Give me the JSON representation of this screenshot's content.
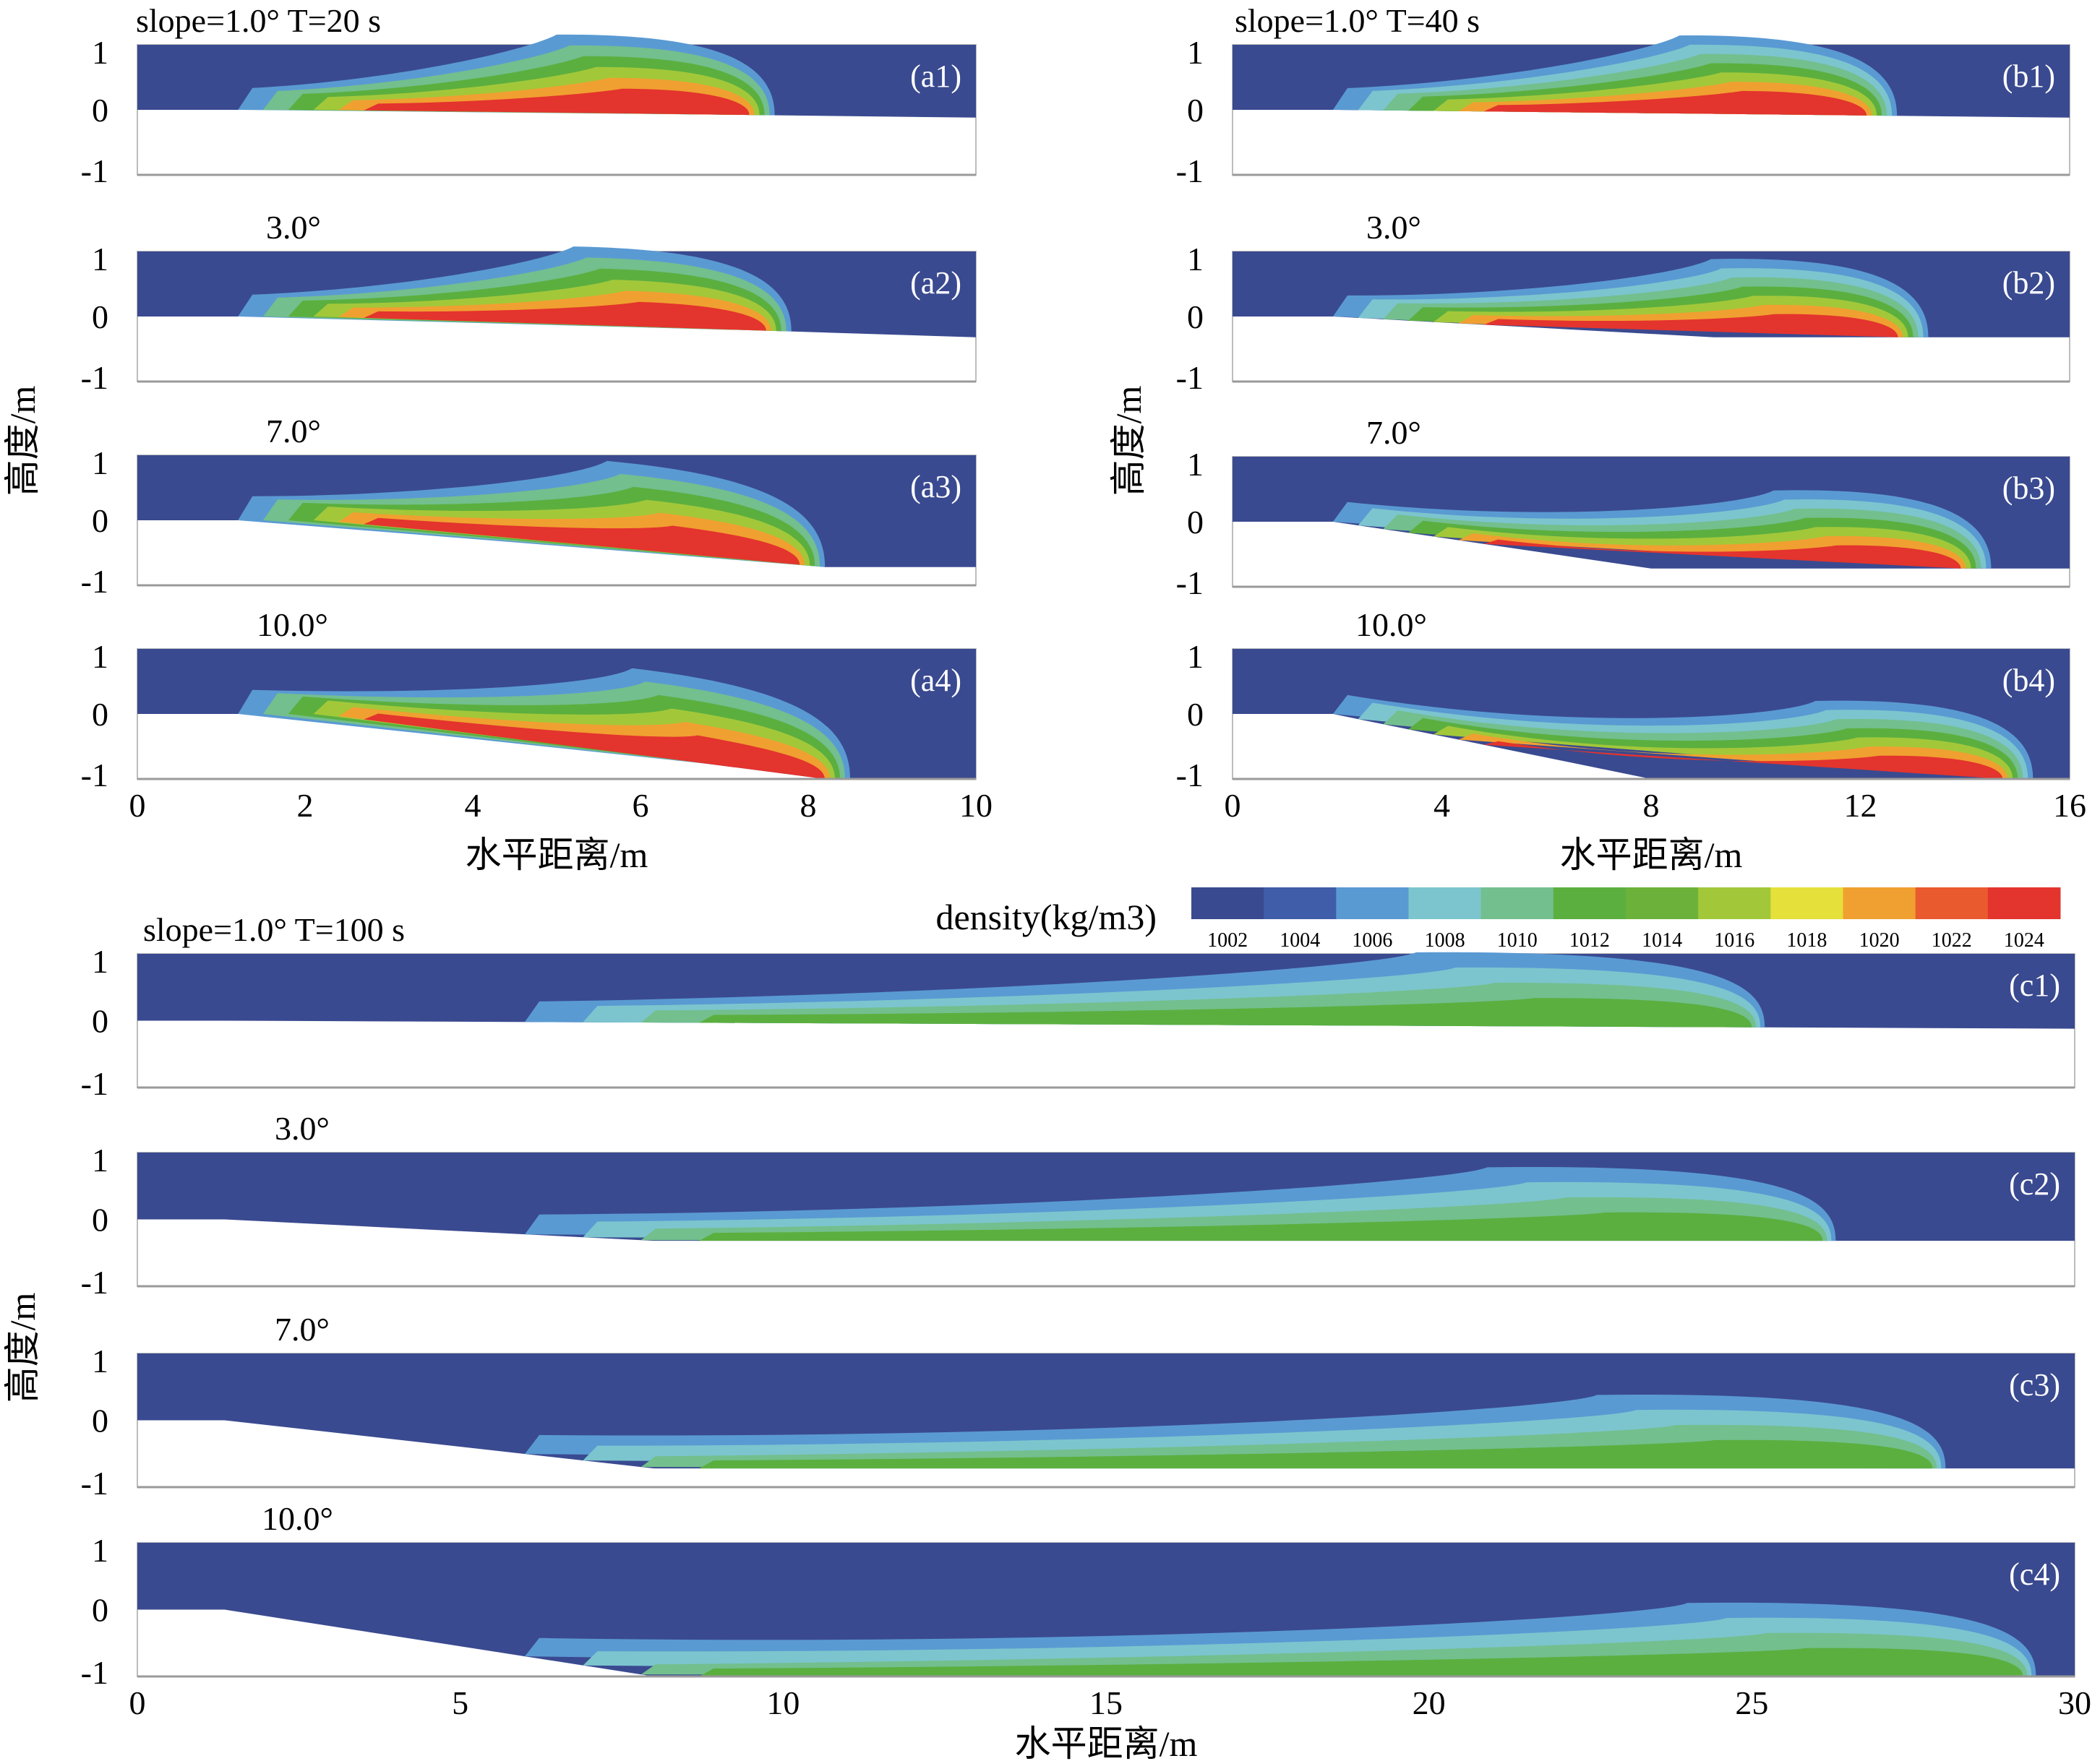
{
  "chart_data": {
    "type": "heatmap",
    "figure_description": "Simulated density fields of a gravity current flowing down slopes of different angle at three times",
    "colorbar": {
      "title": "density(kg/m3)",
      "ticks": [
        "1002",
        "1004",
        "1006",
        "1008",
        "1010",
        "1012",
        "1014",
        "1016",
        "1018",
        "1020",
        "1022",
        "1024"
      ],
      "colors": [
        "#3A4A90",
        "#3F5DA8",
        "#5A9AD3",
        "#7CC5CE",
        "#73BF8E",
        "#5BAF3F",
        "#6CB23A",
        "#A2C83A",
        "#E6E03A",
        "#F0A030",
        "#EA5A2F",
        "#E3342E"
      ]
    },
    "groups": [
      {
        "id": "a",
        "header": "slope=1.0°  T=20 s",
        "time_s": 20,
        "xlabel": "水平距离/m",
        "ylabel": "高度/m",
        "xlim": [
          0,
          10
        ],
        "xticks": [
          "0",
          "2",
          "4",
          "6",
          "8",
          "10"
        ],
        "yticks": [
          "1",
          "0",
          "-1"
        ],
        "panels": [
          {
            "label": "(a1)",
            "slope_label": "",
            "slope_deg": 1.0,
            "front_x_m": 7.6
          },
          {
            "label": "(a2)",
            "slope_label": "3.0°",
            "slope_deg": 3.0,
            "front_x_m": 7.8
          },
          {
            "label": "(a3)",
            "slope_label": "7.0°",
            "slope_deg": 7.0,
            "front_x_m": 8.2
          },
          {
            "label": "(a4)",
            "slope_label": "10.0°",
            "slope_deg": 10.0,
            "front_x_m": 8.5
          }
        ]
      },
      {
        "id": "b",
        "header": "slope=1.0°  T=40 s",
        "time_s": 40,
        "xlabel": "水平距离/m",
        "ylabel": "高度/m",
        "xlim": [
          0,
          16
        ],
        "xticks": [
          "0",
          "4",
          "8",
          "12",
          "16"
        ],
        "yticks": [
          "1",
          "0",
          "-1"
        ],
        "panels": [
          {
            "label": "(b1)",
            "slope_label": "",
            "slope_deg": 1.0,
            "front_x_m": 12.7
          },
          {
            "label": "(b2)",
            "slope_label": "3.0°",
            "slope_deg": 3.0,
            "front_x_m": 13.3
          },
          {
            "label": "(b3)",
            "slope_label": "7.0°",
            "slope_deg": 7.0,
            "front_x_m": 14.5
          },
          {
            "label": "(b4)",
            "slope_label": "10.0°",
            "slope_deg": 10.0,
            "front_x_m": 15.3
          }
        ]
      },
      {
        "id": "c",
        "header": "slope=1.0°  T=100 s",
        "time_s": 100,
        "xlabel": "水平距离/m",
        "ylabel": "高度/m",
        "xlim": [
          0,
          30
        ],
        "xticks": [
          "0",
          "5",
          "10",
          "15",
          "20",
          "25",
          "30"
        ],
        "yticks": [
          "1",
          "0",
          "-1"
        ],
        "panels": [
          {
            "label": "(c1)",
            "slope_label": "",
            "slope_deg": 1.0,
            "front_x_m": 25.2
          },
          {
            "label": "(c2)",
            "slope_label": "3.0°",
            "slope_deg": 3.0,
            "front_x_m": 26.3
          },
          {
            "label": "(c3)",
            "slope_label": "7.0°",
            "slope_deg": 7.0,
            "front_x_m": 28.0
          },
          {
            "label": "(c4)",
            "slope_label": "10.0°",
            "slope_deg": 10.0,
            "front_x_m": 29.4
          }
        ]
      }
    ]
  }
}
